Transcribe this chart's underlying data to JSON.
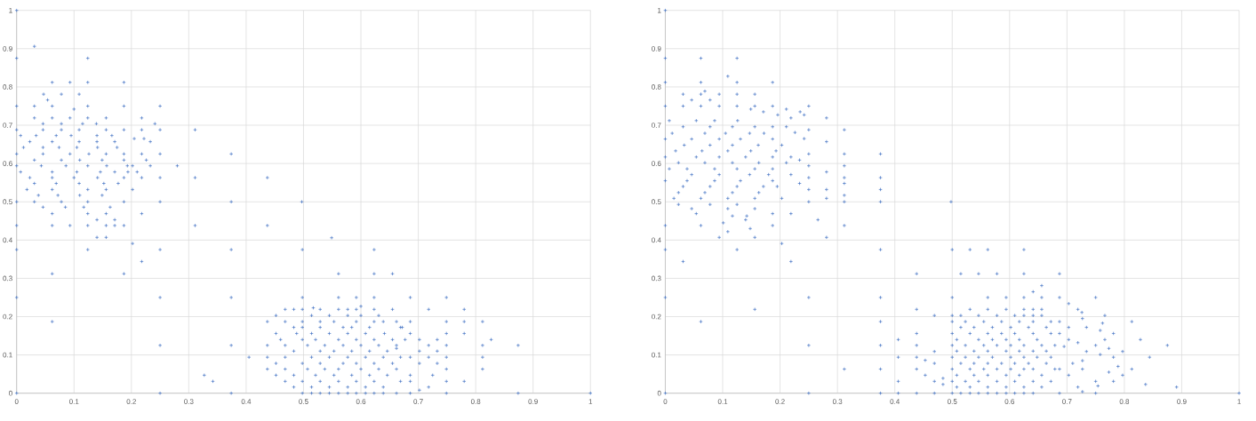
{
  "chart_data": [
    {
      "type": "scatter",
      "color": "#4472c4",
      "marker": "cross",
      "grid": true,
      "xlim": [
        0,
        1
      ],
      "ylim": [
        0,
        1
      ],
      "xticks": [
        0,
        0.1,
        0.2,
        0.3,
        0.4,
        0.5,
        0.6,
        0.7,
        0.8,
        0.9,
        1
      ],
      "yticks": [
        0,
        0.1,
        0.2,
        0.3,
        0.4,
        0.5,
        0.6,
        0.7,
        0.8,
        0.9,
        1
      ],
      "x": [
        0,
        0.031,
        0,
        0.124,
        0.062,
        0.093,
        0.124,
        0.187,
        0.047,
        0.078,
        0.109,
        0.054,
        0,
        0.031,
        0.062,
        0.124,
        0.187,
        0.25,
        0.1,
        0.218,
        0.241,
        0.25,
        0.311,
        0.218,
        0.187,
        0.205,
        0.222,
        0.233,
        0.218,
        0.25,
        0.374,
        0.226,
        0.233,
        0.28,
        0.202,
        0.194,
        0.21,
        0.218,
        0.25,
        0.311,
        0.437,
        0.202,
        0.25,
        0.374,
        0.497,
        0.218,
        0,
        0.062,
        0.093,
        0.124,
        0.156,
        0.171,
        0.187,
        0.311,
        0.437,
        0.14,
        0.156,
        0.202,
        0,
        0.124,
        0.25,
        0.374,
        0.218,
        0.031,
        0.062,
        0.093,
        0.124,
        0.156,
        0.046,
        0.078,
        0.115,
        0.139,
        0,
        0.046,
        0.078,
        0.109,
        0.156,
        0.007,
        0.034,
        0.069,
        0.095,
        0.14,
        0.166,
        0.023,
        0.062,
        0.109,
        0.14,
        0.171,
        0.012,
        0.046,
        0.074,
        0.105,
        0.141,
        0.175,
        0,
        0.046,
        0.093,
        0.126,
        0.156,
        0.187,
        0.031,
        0.078,
        0.11,
        0.149,
        0.187,
        0,
        0.043,
        0.086,
        0.124,
        0.157,
        0.193,
        0.007,
        0.062,
        0.105,
        0.146,
        0.171,
        0.023,
        0.062,
        0.1,
        0.141,
        0.187,
        0.031,
        0.069,
        0.109,
        0.152,
        0.177,
        0.018,
        0.062,
        0.124,
        0.156,
        0.038,
        0.072,
        0.11,
        0.149,
        0,
        0.031,
        0.078,
        0.124,
        0.187,
        0.046,
        0.085,
        0.117,
        0.163,
        0.062,
        0.124,
        0.156,
        0.14,
        0.171,
        0,
        0,
        0.062,
        0.062,
        0.187,
        0.25,
        0.25,
        0.25,
        0.374,
        0.374,
        0.374,
        0.327,
        0.342,
        0.405,
        0.549,
        0.498,
        0.623,
        0.561,
        0.623,
        0.655,
        0.498,
        0.561,
        0.592,
        0.623,
        0.686,
        0.749,
        0.468,
        0.483,
        0.498,
        0.529,
        0.561,
        0.577,
        0.592,
        0.623,
        0.655,
        0.452,
        0.514,
        0.545,
        0.577,
        0.6,
        0.631,
        0.437,
        0.468,
        0.498,
        0.529,
        0.553,
        0.592,
        0.623,
        0.639,
        0.662,
        0.483,
        0.498,
        0.529,
        0.569,
        0.584,
        0.615,
        0.669,
        0.452,
        0.488,
        0.514,
        0.545,
        0.577,
        0.608,
        0.641,
        0.46,
        0.498,
        0.521,
        0.561,
        0.592,
        0.623,
        0.655,
        0.677,
        0.437,
        0.468,
        0.507,
        0.537,
        0.569,
        0.6,
        0.631,
        0.662,
        0.483,
        0.529,
        0.553,
        0.584,
        0.615,
        0.646,
        0.437,
        0.468,
        0.514,
        0.545,
        0.577,
        0.608,
        0.639,
        0.669,
        0.452,
        0.498,
        0.529,
        0.569,
        0.592,
        0.623,
        0.655,
        0.437,
        0.468,
        0.507,
        0.537,
        0.561,
        0.6,
        0.631,
        0.662,
        0.452,
        0.483,
        0.521,
        0.553,
        0.584,
        0.615,
        0.646,
        0.468,
        0.498,
        0.529,
        0.561,
        0.592,
        0.623,
        0.669,
        0.483,
        0.514,
        0.545,
        0.577,
        0.608,
        0.639,
        0.498,
        0.514,
        0.529,
        0.545,
        0.561,
        0.577,
        0.592,
        0.608,
        0.623,
        0.639,
        0.662,
        0.517,
        0.6,
        0.718,
        0.78,
        0.686,
        0.749,
        0.78,
        0.812,
        0.749,
        0.78,
        0.827,
        0.733,
        0.812,
        0.874,
        0.749,
        0.718,
        0.812,
        0.812,
        0.749,
        0.749,
        0.78,
        0.749,
        0.718,
        0.702,
        0.686,
        0.749,
        0.874,
        1,
        0.702,
        0.686,
        0.672,
        0.702,
        0.733,
        0.718,
        0.686,
        0.702,
        0.733,
        0.725,
        0.686,
        0.686,
        0.662
      ],
      "values": [
        1,
        0.906,
        0.875,
        0.875,
        0.812,
        0.812,
        0.812,
        0.812,
        0.781,
        0.781,
        0.781,
        0.766,
        0.75,
        0.75,
        0.75,
        0.75,
        0.75,
        0.75,
        0.742,
        0.719,
        0.704,
        0.688,
        0.688,
        0.688,
        0.688,
        0.665,
        0.665,
        0.657,
        0.625,
        0.625,
        0.625,
        0.609,
        0.594,
        0.594,
        0.594,
        0.578,
        0.578,
        0.563,
        0.563,
        0.563,
        0.563,
        0.532,
        0.5,
        0.5,
        0.5,
        0.469,
        0.438,
        0.438,
        0.438,
        0.438,
        0.438,
        0.438,
        0.438,
        0.438,
        0.438,
        0.407,
        0.407,
        0.391,
        0.375,
        0.375,
        0.375,
        0.375,
        0.344,
        0.719,
        0.719,
        0.719,
        0.719,
        0.719,
        0.704,
        0.704,
        0.704,
        0.704,
        0.688,
        0.688,
        0.688,
        0.688,
        0.688,
        0.673,
        0.673,
        0.673,
        0.673,
        0.673,
        0.673,
        0.657,
        0.657,
        0.657,
        0.657,
        0.657,
        0.642,
        0.642,
        0.642,
        0.642,
        0.642,
        0.642,
        0.625,
        0.625,
        0.625,
        0.625,
        0.625,
        0.625,
        0.609,
        0.609,
        0.609,
        0.609,
        0.609,
        0.594,
        0.594,
        0.594,
        0.594,
        0.594,
        0.594,
        0.578,
        0.578,
        0.578,
        0.578,
        0.578,
        0.563,
        0.563,
        0.563,
        0.563,
        0.563,
        0.548,
        0.548,
        0.548,
        0.548,
        0.548,
        0.532,
        0.532,
        0.532,
        0.532,
        0.517,
        0.517,
        0.517,
        0.517,
        0.5,
        0.5,
        0.5,
        0.5,
        0.5,
        0.486,
        0.486,
        0.486,
        0.486,
        0.469,
        0.469,
        0.469,
        0.453,
        0.453,
        0.25,
        0,
        0.312,
        0.187,
        0.312,
        0.25,
        0.125,
        0,
        0.25,
        0.125,
        0,
        0.047,
        0.031,
        0.094,
        0.406,
        0.375,
        0.375,
        0.312,
        0.312,
        0.312,
        0.25,
        0.25,
        0.25,
        0.25,
        0.25,
        0.25,
        0.219,
        0.219,
        0.219,
        0.219,
        0.219,
        0.219,
        0.219,
        0.219,
        0.219,
        0.203,
        0.203,
        0.203,
        0.203,
        0.203,
        0.203,
        0.187,
        0.187,
        0.187,
        0.187,
        0.187,
        0.187,
        0.187,
        0.187,
        0.187,
        0.172,
        0.172,
        0.172,
        0.172,
        0.172,
        0.172,
        0.172,
        0.156,
        0.156,
        0.156,
        0.156,
        0.156,
        0.156,
        0.156,
        0.14,
        0.14,
        0.14,
        0.14,
        0.14,
        0.14,
        0.14,
        0.14,
        0.125,
        0.125,
        0.125,
        0.125,
        0.125,
        0.125,
        0.125,
        0.125,
        0.11,
        0.11,
        0.11,
        0.11,
        0.11,
        0.11,
        0.094,
        0.094,
        0.094,
        0.094,
        0.094,
        0.094,
        0.094,
        0.094,
        0.078,
        0.078,
        0.078,
        0.078,
        0.078,
        0.078,
        0.078,
        0.063,
        0.063,
        0.063,
        0.063,
        0.063,
        0.063,
        0.063,
        0.063,
        0.047,
        0.047,
        0.047,
        0.047,
        0.047,
        0.047,
        0.047,
        0.031,
        0.031,
        0.031,
        0.031,
        0.031,
        0.031,
        0.031,
        0.016,
        0.016,
        0.016,
        0.016,
        0.016,
        0.016,
        0,
        0,
        0,
        0,
        0,
        0,
        0,
        0,
        0,
        0,
        0,
        0.223,
        0.227,
        0.219,
        0.219,
        0.187,
        0.187,
        0.187,
        0.187,
        0.156,
        0.156,
        0.14,
        0.14,
        0.125,
        0.125,
        0.125,
        0.125,
        0.094,
        0.063,
        0.094,
        0.063,
        0.031,
        0.031,
        0.016,
        0.008,
        0,
        0,
        0,
        0,
        0.14,
        0.156,
        0.172,
        0.11,
        0.11,
        0.094,
        0.094,
        0.078,
        0.078,
        0.047,
        0.047,
        0.031,
        0.117
      ]
    },
    {
      "type": "scatter",
      "color": "#4472c4",
      "marker": "cross",
      "grid": true,
      "xlim": [
        0,
        1
      ],
      "ylim": [
        0,
        1
      ],
      "xticks": [
        0,
        0.1,
        0.2,
        0.3,
        0.4,
        0.5,
        0.6,
        0.7,
        0.8,
        0.9,
        1
      ],
      "yticks": [
        0,
        0.1,
        0.2,
        0.3,
        0.4,
        0.5,
        0.6,
        0.7,
        0.8,
        0.9,
        1
      ],
      "x": [
        0,
        0,
        0.062,
        0.125,
        0.109,
        0,
        0.062,
        0.125,
        0.187,
        0.031,
        0.062,
        0.069,
        0.094,
        0.125,
        0.156,
        0.046,
        0.078,
        0,
        0.031,
        0.062,
        0.094,
        0.125,
        0.156,
        0.187,
        0.25,
        0.149,
        0.211,
        0.235,
        0.242,
        0.196,
        0.281,
        0.219,
        0.171,
        0.211,
        0.25,
        0.312,
        0.226,
        0.242,
        0.281,
        0.312,
        0.375,
        0.25,
        0.234,
        0.25,
        0.312,
        0.281,
        0.312,
        0.375,
        0.25,
        0.234,
        0.312,
        0.25,
        0.375,
        0.281,
        0.312,
        0.281,
        0.25,
        0.312,
        0.375,
        0.498,
        0.266,
        0.219,
        0.187,
        0.312,
        0,
        0.062,
        0.187,
        0.281,
        0.094,
        0.156,
        0.203,
        0,
        0.125,
        0.375,
        0.031,
        0.219,
        0.109,
        0.148,
        0.101,
        0.14,
        0.054,
        0.007,
        0.054,
        0.086,
        0.126,
        0.031,
        0.078,
        0.117,
        0.156,
        0.187,
        0.012,
        0.069,
        0.105,
        0.147,
        0.172,
        0,
        0.046,
        0.094,
        0.131,
        0.187,
        0.033,
        0.078,
        0.117,
        0.162,
        0.203,
        0.018,
        0.064,
        0.109,
        0.149,
        0.193,
        0,
        0.054,
        0.094,
        0.14,
        0.187,
        0.219,
        0.023,
        0.069,
        0.117,
        0.163,
        0.211,
        0.007,
        0.038,
        0.086,
        0.125,
        0.156,
        0.187,
        0.046,
        0.094,
        0.147,
        0.18,
        0.219,
        0,
        0.038,
        0.086,
        0.131,
        0.187,
        0.031,
        0.078,
        0.125,
        0.171,
        0.195,
        0.023,
        0.069,
        0.117,
        0.163,
        0.015,
        0.062,
        0.109,
        0.156,
        0.203,
        0.023,
        0.078,
        0.125,
        0.046,
        0.109,
        0.156,
        0.117,
        0.142,
        0,
        0,
        0.062,
        0.156,
        0.25,
        0.25,
        0.25,
        0.312,
        0.375,
        0.375,
        0.375,
        0.375,
        0.375,
        0.406,
        0.406,
        0.406,
        0.406,
        0.438,
        0.438,
        0.438,
        0.438,
        0.438,
        0.438,
        0.438,
        0.453,
        0.453,
        0.469,
        0.469,
        0.469,
        0.469,
        0.469,
        0.484,
        0.484,
        0.5,
        0.531,
        0.562,
        0.625,
        0.515,
        0.546,
        0.578,
        0.625,
        0.5,
        0.562,
        0.594,
        0.625,
        0.656,
        0.656,
        0.641,
        0.531,
        0.562,
        0.594,
        0.625,
        0.641,
        0.656,
        0.5,
        0.515,
        0.546,
        0.578,
        0.609,
        0.625,
        0.641,
        0.656,
        0.5,
        0.523,
        0.555,
        0.586,
        0.617,
        0.641,
        0.672,
        0.515,
        0.538,
        0.57,
        0.602,
        0.633,
        0.664,
        0.5,
        0.531,
        0.562,
        0.586,
        0.609,
        0.641,
        0.672,
        0.508,
        0.546,
        0.57,
        0.594,
        0.617,
        0.648,
        0.5,
        0.523,
        0.555,
        0.578,
        0.602,
        0.625,
        0.656,
        0.679,
        0.508,
        0.538,
        0.562,
        0.594,
        0.617,
        0.641,
        0.664,
        0.5,
        0.523,
        0.546,
        0.57,
        0.602,
        0.625,
        0.648,
        0.672,
        0.515,
        0.538,
        0.562,
        0.586,
        0.609,
        0.633,
        0.664,
        0.5,
        0.531,
        0.555,
        0.578,
        0.602,
        0.625,
        0.641,
        0.679,
        0.508,
        0.538,
        0.562,
        0.594,
        0.617,
        0.656,
        0.5,
        0.523,
        0.546,
        0.578,
        0.609,
        0.641,
        0.672,
        0.508,
        0.531,
        0.562,
        0.594,
        0.625,
        0.656,
        0.5,
        0.515,
        0.531,
        0.546,
        0.562,
        0.578,
        0.594,
        0.609,
        0.625,
        0.641,
        0.687,
        0.687,
        0.75,
        0.703,
        0.719,
        0.726,
        0.766,
        0.727,
        0.813,
        0.687,
        0.762,
        0.703,
        0.781,
        0.758,
        0.734,
        0.828,
        0.766,
        0.875,
        0.75,
        0.719,
        0.797,
        0.773,
        0.844,
        0.781,
        0.758,
        0.734,
        0.813,
        0.789,
        0.773,
        0.797,
        0.781,
        0.837,
        0.891,
        0.75,
        1,
        0.727,
        0.727,
        0.75,
        0.719,
        0.703,
        0.687,
        0.695,
        0.687,
        0.703,
        0.71,
        0.754,
        0.727,
        0.687
      ],
      "values": [
        1,
        0.875,
        0.875,
        0.875,
        0.828,
        0.812,
        0.812,
        0.812,
        0.812,
        0.781,
        0.781,
        0.789,
        0.781,
        0.781,
        0.781,
        0.766,
        0.766,
        0.75,
        0.75,
        0.75,
        0.75,
        0.75,
        0.75,
        0.75,
        0.75,
        0.742,
        0.742,
        0.735,
        0.727,
        0.727,
        0.719,
        0.719,
        0.735,
        0.696,
        0.688,
        0.688,
        0.681,
        0.665,
        0.657,
        0.625,
        0.625,
        0.625,
        0.609,
        0.594,
        0.594,
        0.578,
        0.563,
        0.563,
        0.563,
        0.548,
        0.548,
        0.532,
        0.532,
        0.532,
        0.517,
        0.509,
        0.5,
        0.5,
        0.5,
        0.5,
        0.453,
        0.469,
        0.469,
        0.438,
        0.438,
        0.438,
        0.438,
        0.407,
        0.407,
        0.407,
        0.391,
        0.375,
        0.375,
        0.375,
        0.344,
        0.344,
        0.422,
        0.43,
        0.445,
        0.453,
        0.469,
        0.712,
        0.712,
        0.712,
        0.712,
        0.696,
        0.696,
        0.696,
        0.696,
        0.696,
        0.679,
        0.679,
        0.679,
        0.679,
        0.679,
        0.664,
        0.664,
        0.664,
        0.664,
        0.664,
        0.648,
        0.648,
        0.648,
        0.648,
        0.648,
        0.633,
        0.633,
        0.633,
        0.633,
        0.633,
        0.617,
        0.617,
        0.617,
        0.617,
        0.617,
        0.617,
        0.602,
        0.602,
        0.602,
        0.602,
        0.602,
        0.586,
        0.586,
        0.586,
        0.586,
        0.586,
        0.586,
        0.571,
        0.571,
        0.571,
        0.571,
        0.571,
        0.555,
        0.555,
        0.555,
        0.555,
        0.555,
        0.54,
        0.54,
        0.54,
        0.54,
        0.54,
        0.524,
        0.524,
        0.524,
        0.524,
        0.509,
        0.509,
        0.509,
        0.509,
        0.509,
        0.493,
        0.493,
        0.493,
        0.482,
        0.482,
        0.482,
        0.463,
        0.463,
        0.25,
        0,
        0.187,
        0.219,
        0.25,
        0.125,
        0,
        0.063,
        0.25,
        0.187,
        0.125,
        0.063,
        0,
        0.14,
        0.094,
        0.031,
        0,
        0.312,
        0.219,
        0.156,
        0.125,
        0.094,
        0.063,
        0,
        0.086,
        0.047,
        0.203,
        0.109,
        0.078,
        0.031,
        0,
        0.039,
        0.023,
        0.375,
        0.375,
        0.375,
        0.375,
        0.312,
        0.312,
        0.312,
        0.312,
        0.25,
        0.25,
        0.25,
        0.25,
        0.25,
        0.281,
        0.265,
        0.219,
        0.219,
        0.219,
        0.219,
        0.219,
        0.219,
        0.203,
        0.203,
        0.203,
        0.203,
        0.203,
        0.203,
        0.203,
        0.203,
        0.187,
        0.187,
        0.187,
        0.187,
        0.187,
        0.187,
        0.187,
        0.172,
        0.172,
        0.172,
        0.172,
        0.172,
        0.172,
        0.156,
        0.156,
        0.156,
        0.156,
        0.156,
        0.156,
        0.156,
        0.14,
        0.14,
        0.14,
        0.14,
        0.14,
        0.14,
        0.125,
        0.125,
        0.125,
        0.125,
        0.125,
        0.125,
        0.125,
        0.125,
        0.11,
        0.11,
        0.11,
        0.11,
        0.11,
        0.11,
        0.11,
        0.094,
        0.094,
        0.094,
        0.094,
        0.094,
        0.094,
        0.094,
        0.094,
        0.078,
        0.078,
        0.078,
        0.078,
        0.078,
        0.078,
        0.078,
        0.063,
        0.063,
        0.063,
        0.063,
        0.063,
        0.063,
        0.063,
        0.063,
        0.047,
        0.047,
        0.047,
        0.047,
        0.047,
        0.047,
        0.031,
        0.031,
        0.031,
        0.031,
        0.031,
        0.031,
        0.031,
        0.016,
        0.016,
        0.016,
        0.016,
        0.016,
        0.016,
        0,
        0,
        0,
        0,
        0,
        0,
        0,
        0,
        0,
        0,
        0.312,
        0.25,
        0.25,
        0.234,
        0.219,
        0.211,
        0.203,
        0.195,
        0.187,
        0.187,
        0.183,
        0.172,
        0.156,
        0.164,
        0.172,
        0.14,
        0.14,
        0.125,
        0.125,
        0.132,
        0.109,
        0.117,
        0.094,
        0.094,
        0.101,
        0.109,
        0.063,
        0.07,
        0.055,
        0.047,
        0.031,
        0.023,
        0.016,
        0,
        0,
        0.085,
        0.063,
        0.031,
        0.016,
        0.047,
        0.063,
        0.122,
        0.156,
        0.14,
        0.078,
        0.019,
        0.004,
        0
      ]
    }
  ]
}
